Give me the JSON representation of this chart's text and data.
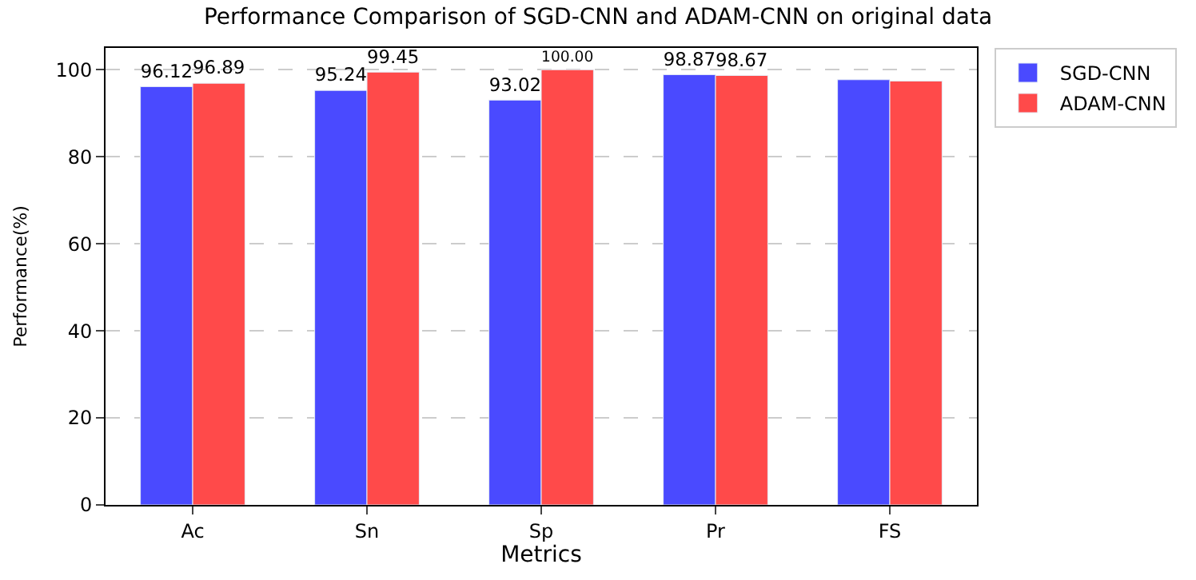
{
  "chart_data": {
    "type": "bar",
    "title": "Performance Comparison of SGD-CNN and ADAM-CNN on original data",
    "xlabel": "Metrics",
    "ylabel": "Performance(%)",
    "categories": [
      "Ac",
      "Sn",
      "Sp",
      "Pr",
      "FS"
    ],
    "series": [
      {
        "name": "SGD-CNN",
        "color": "#4a4aff",
        "values": [
          96.12,
          95.24,
          93.02,
          98.87,
          97.7
        ],
        "value_labels": [
          "96.12",
          "95.24",
          "93.02",
          "98.87",
          null
        ]
      },
      {
        "name": "ADAM-CNN",
        "color": "#ff4a4a",
        "values": [
          96.89,
          99.45,
          100.0,
          98.67,
          97.4
        ],
        "value_labels": [
          "96.89",
          "99.45",
          "100.00",
          "98.67",
          null
        ]
      }
    ],
    "ylim": [
      0,
      105
    ],
    "yticks": [
      0,
      20,
      40,
      60,
      80,
      100
    ],
    "grid": "y",
    "legend": "top right"
  }
}
